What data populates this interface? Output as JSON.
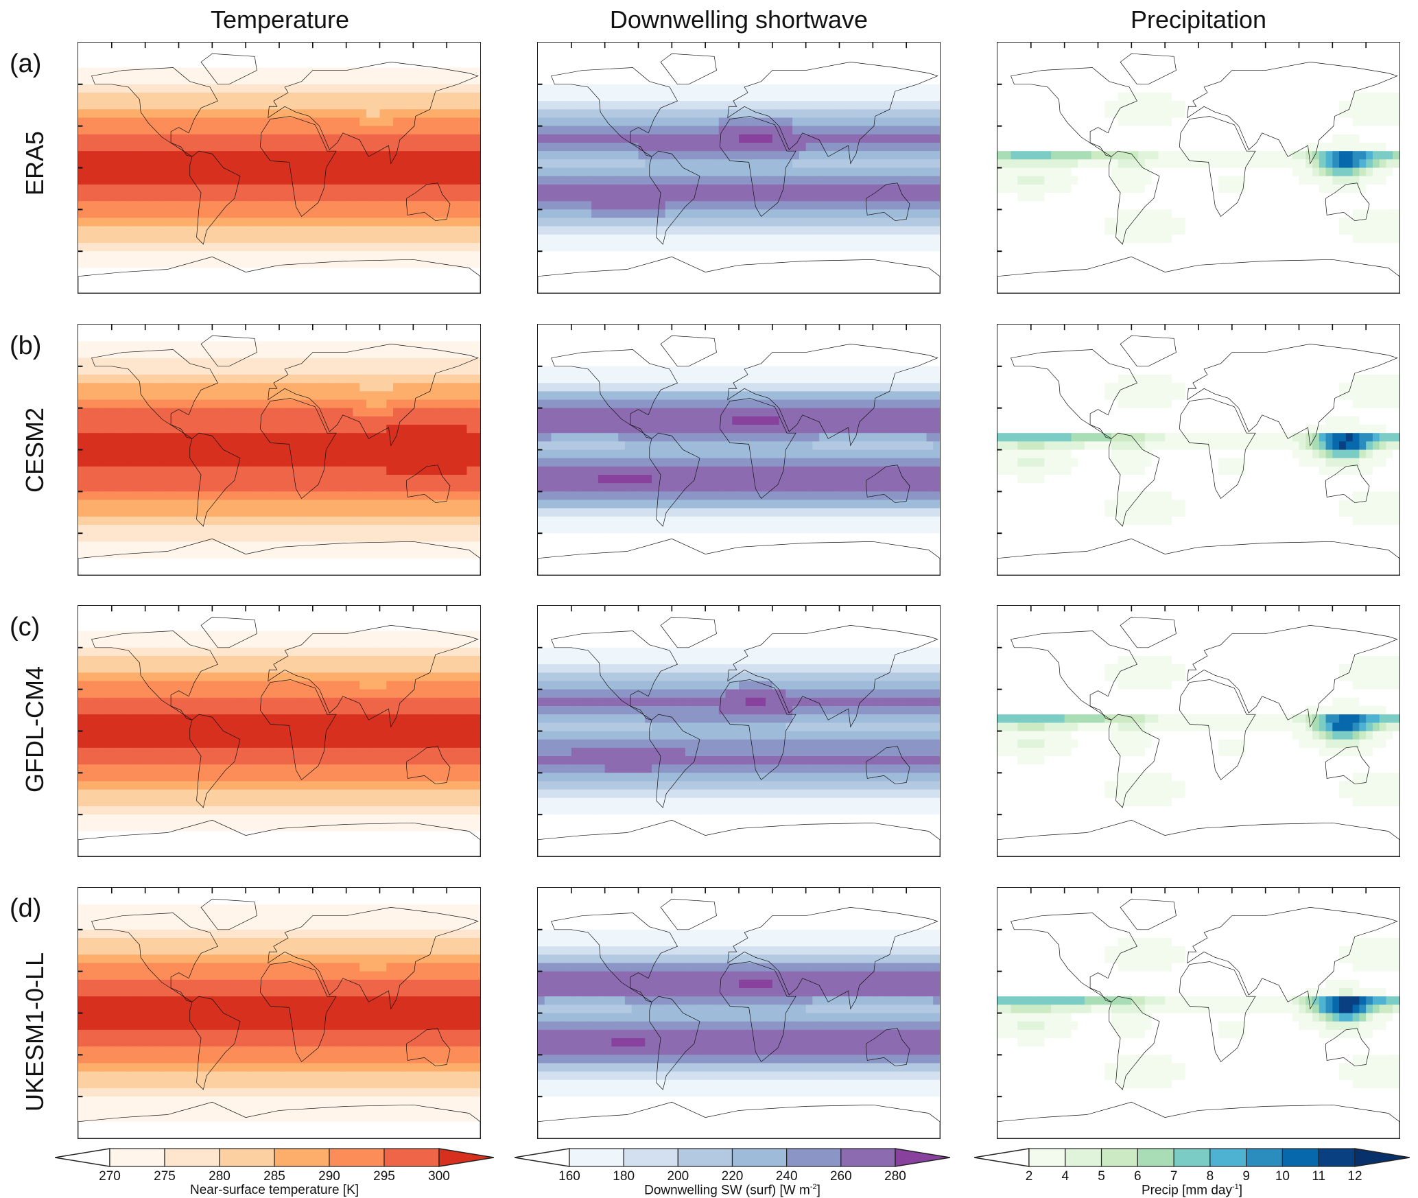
{
  "columns": [
    {
      "title": "Temperature",
      "field": "temperature"
    },
    {
      "title": "Downwelling shortwave",
      "field": "shortwave"
    },
    {
      "title": "Precipitation",
      "field": "precipitation"
    }
  ],
  "rows": [
    {
      "letter": "(a)",
      "name": "ERA5"
    },
    {
      "letter": "(b)",
      "name": "CESM2"
    },
    {
      "letter": "(c)",
      "name": "GFDL-CM4"
    },
    {
      "letter": "(d)",
      "name": "UKESM1-0-LL"
    }
  ],
  "colorbars": [
    {
      "label": "Near-surface temperature [K]",
      "ticks": [
        "270",
        "275",
        "280",
        "285",
        "290",
        "295",
        "300"
      ],
      "levels": [
        270,
        275,
        280,
        285,
        290,
        295,
        300
      ],
      "colors": [
        "#ffffff",
        "#fff5eb",
        "#fee6ce",
        "#fdd0a2",
        "#fdae6b",
        "#fc8d59",
        "#ef6548",
        "#d7301f"
      ]
    },
    {
      "label_main": "Downwelling SW (surf) [W m",
      "label_sup": "-2",
      "label_end": "]",
      "ticks": [
        "160",
        "180",
        "200",
        "220",
        "240",
        "260",
        "280"
      ],
      "levels": [
        160,
        180,
        200,
        220,
        240,
        260,
        280
      ],
      "colors": [
        "#ffffff",
        "#eef5fb",
        "#d3e0ef",
        "#b3c9e2",
        "#9ebcda",
        "#8c96c6",
        "#8c6bb1",
        "#88419d"
      ]
    },
    {
      "label_main": "Precip [mm day",
      "label_sup": "-1",
      "label_end": "]",
      "ticks": [
        "2",
        "4",
        "5",
        "6",
        "7",
        "8",
        "9",
        "10",
        "11",
        "12"
      ],
      "levels": [
        2,
        4,
        5,
        6,
        7,
        8,
        9,
        10,
        11,
        12
      ],
      "colors": [
        "#ffffff",
        "#f3faee",
        "#e0f3db",
        "#ccebc5",
        "#a8ddb5",
        "#7bccc4",
        "#4eb3d3",
        "#2b8cbe",
        "#0868ac",
        "#084081",
        "#08306b"
      ]
    }
  ]
}
